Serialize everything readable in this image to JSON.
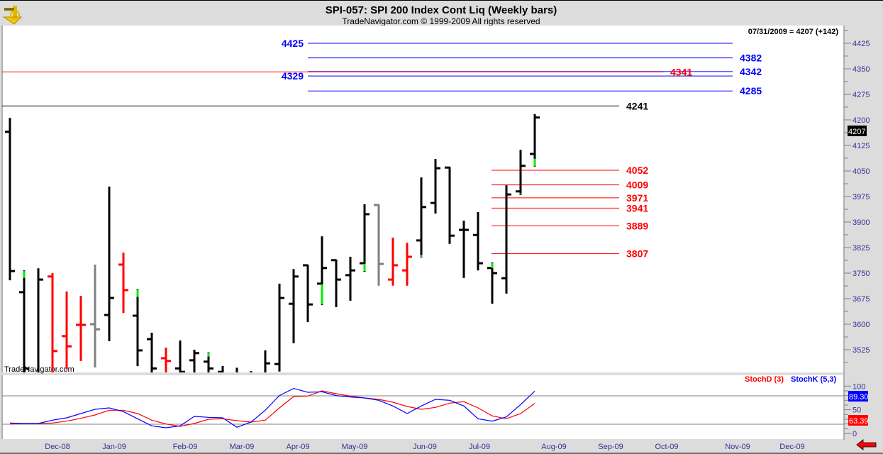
{
  "header": {
    "title": "SPI-057:  SPI 200 Index Cont Liq  (Weekly bars)",
    "subtitle": "TradeNavigator.com © 1999-2009 All rights reserved",
    "logo_icon": "sextant-icon"
  },
  "last_quote": "07/31/2009 = 4207 (+142)",
  "watermark": "TradeNavigator.com",
  "colors": {
    "up": "#000000",
    "down": "#ff0000",
    "neutral": "#808080",
    "new_extreme": "#00ee00",
    "blue": "#0000ff",
    "red": "#ff0000"
  },
  "chart_data": [
    {
      "type": "ohlc",
      "title": "SPI 200 Index Cont Liq (Weekly bars)",
      "ylim": [
        3490,
        4460
      ],
      "y_ticks": [
        "4425",
        "4350",
        "4275",
        "4200",
        "4125",
        "4050",
        "3975",
        "3900",
        "3825",
        "3750",
        "3675",
        "3600",
        "3525"
      ],
      "last_price_label": "4207",
      "bars": [
        {
          "o": 4165,
          "h": 4204,
          "l": 3731,
          "c": 3756,
          "col": "up"
        },
        {
          "o": 3694,
          "h": 3756,
          "l": 3440,
          "c": 3470,
          "col": "up",
          "g": [
            3736,
            3756
          ]
        },
        {
          "o": 3440,
          "h": 3762,
          "l": 3430,
          "c": 3731,
          "col": "up"
        },
        {
          "o": 3740,
          "h": 3748,
          "l": 3440,
          "c": 3521,
          "col": "down"
        },
        {
          "o": 3565,
          "h": 3694,
          "l": 3470,
          "c": 3535,
          "col": "down"
        },
        {
          "o": 3598,
          "h": 3681,
          "l": 3494,
          "c": 3598,
          "col": "down"
        },
        {
          "o": 3600,
          "h": 3773,
          "l": 3475,
          "c": 3585,
          "col": "neutral"
        },
        {
          "o": 3627,
          "h": 4002,
          "l": 3552,
          "c": 3677,
          "col": "up"
        },
        {
          "o": 3775,
          "h": 3808,
          "l": 3635,
          "c": 3700,
          "col": "down"
        },
        {
          "o": 3625,
          "h": 3700,
          "l": 3479,
          "c": 3523,
          "col": "up",
          "g": [
            3680,
            3700
          ]
        },
        {
          "o": 3556,
          "h": 3573,
          "l": 3440,
          "c": 3470,
          "col": "up"
        },
        {
          "o": 3500,
          "h": 3529,
          "l": 3440,
          "c": 3492,
          "col": "down"
        },
        {
          "o": 3470,
          "h": 3550,
          "l": 3440,
          "c": 3460,
          "col": "up"
        },
        {
          "o": 3494,
          "h": 3523,
          "l": 3440,
          "c": 3515,
          "col": "up"
        },
        {
          "o": 3490,
          "h": 3515,
          "l": 3440,
          "c": 3470,
          "col": "up",
          "g": [
            3505,
            3515
          ]
        },
        {
          "o": 3460,
          "h": 3475,
          "l": 3400,
          "c": 3420,
          "col": "up"
        },
        {
          "o": 3430,
          "h": 3470,
          "l": 3380,
          "c": 3400,
          "col": "up"
        },
        {
          "o": 3400,
          "h": 3460,
          "l": 3370,
          "c": 3440,
          "col": "up"
        },
        {
          "o": 3450,
          "h": 3521,
          "l": 3440,
          "c": 3485,
          "col": "up"
        },
        {
          "o": 3483,
          "h": 3717,
          "l": 3463,
          "c": 3677,
          "col": "up"
        },
        {
          "o": 3660,
          "h": 3760,
          "l": 3546,
          "c": 3740,
          "col": "up"
        },
        {
          "o": 3773,
          "h": 3773,
          "l": 3608,
          "c": 3658,
          "col": "up"
        },
        {
          "o": 3719,
          "h": 3856,
          "l": 3658,
          "c": 3765,
          "col": "up",
          "g": [
            3658,
            3717
          ]
        },
        {
          "o": 3788,
          "h": 3788,
          "l": 3652,
          "c": 3731,
          "col": "up"
        },
        {
          "o": 3744,
          "h": 3796,
          "l": 3671,
          "c": 3758,
          "col": "up"
        },
        {
          "o": 3779,
          "h": 3950,
          "l": 3756,
          "c": 3923,
          "col": "up",
          "g": [
            3756,
            3777
          ]
        },
        {
          "o": 3950,
          "h": 3950,
          "l": 3715,
          "c": 3777,
          "col": "neutral"
        },
        {
          "o": 3731,
          "h": 3852,
          "l": 3715,
          "c": 3773,
          "col": "down"
        },
        {
          "o": 3758,
          "h": 3837,
          "l": 3715,
          "c": 3798,
          "col": "down"
        },
        {
          "o": 3846,
          "h": 4029,
          "l": 3798,
          "c": 3944,
          "col": "up",
          "g": [
            3798,
            3803
          ]
        },
        {
          "o": 3956,
          "h": 4083,
          "l": 3927,
          "c": 4058,
          "col": "up"
        },
        {
          "o": 4060,
          "h": 4060,
          "l": 3838,
          "c": 3860,
          "col": "up"
        },
        {
          "o": 3877,
          "h": 3902,
          "l": 3738,
          "c": 3877,
          "col": "up"
        },
        {
          "o": 3862,
          "h": 3927,
          "l": 3760,
          "c": 3779,
          "col": "up"
        },
        {
          "o": 3765,
          "h": 3779,
          "l": 3662,
          "c": 3750,
          "col": "up",
          "g": [
            3765,
            3779
          ]
        },
        {
          "o": 3735,
          "h": 4006,
          "l": 3692,
          "c": 3981,
          "col": "up"
        },
        {
          "o": 3990,
          "h": 4110,
          "l": 3981,
          "c": 4065,
          "col": "up",
          "g": [
            3981,
            3984
          ]
        },
        {
          "o": 4100,
          "h": 4215,
          "l": 4065,
          "c": 4207,
          "col": "up",
          "g": [
            4065,
            4086
          ]
        }
      ],
      "levels": [
        {
          "value": 4425,
          "label": "4425",
          "color": "blue",
          "span": "mid",
          "label_side": "left"
        },
        {
          "value": 4382,
          "label": "4382",
          "color": "blue",
          "span": "mid",
          "label_side": "right"
        },
        {
          "value": 4342,
          "label": "4342",
          "color": "blue",
          "span": "mid",
          "label_side": "right"
        },
        {
          "value": 4329,
          "label": "4329",
          "color": "blue",
          "span": "mid",
          "label_side": "left"
        },
        {
          "value": 4285,
          "label": "4285",
          "color": "blue",
          "span": "mid",
          "label_side": "right"
        },
        {
          "value": 4341,
          "label": "4341",
          "color": "red",
          "span": "full",
          "label_side": "end"
        },
        {
          "value": 4241,
          "label": "4241",
          "color": "black",
          "span": "full",
          "label_side": "end"
        },
        {
          "value": 4052,
          "label": "4052",
          "color": "red",
          "span": "short",
          "label_side": "end"
        },
        {
          "value": 4009,
          "label": "4009",
          "color": "red",
          "span": "short",
          "label_side": "end"
        },
        {
          "value": 3971,
          "label": "3971",
          "color": "red",
          "span": "short",
          "label_side": "end"
        },
        {
          "value": 3941,
          "label": "3941",
          "color": "red",
          "span": "short",
          "label_side": "end"
        },
        {
          "value": 3889,
          "label": "3889",
          "color": "red",
          "span": "short",
          "label_side": "end"
        },
        {
          "value": 3807,
          "label": "3807",
          "color": "red",
          "span": "short",
          "label_side": "end"
        }
      ]
    },
    {
      "type": "line",
      "title": "Stochastics",
      "ylim": [
        0,
        100
      ],
      "y_ticks": [
        "100",
        "50",
        "0"
      ],
      "ref_lines": [
        80,
        20
      ],
      "series": [
        {
          "name": "StochD (3)",
          "color": "red",
          "last": "63.39",
          "values": [
            20,
            21,
            21,
            22,
            26,
            32,
            39,
            49,
            49,
            42,
            28,
            20,
            15,
            21,
            30,
            31,
            27,
            24,
            28,
            54,
            78,
            79,
            90,
            84,
            79,
            75,
            72,
            66,
            57,
            51,
            55,
            64,
            67,
            54,
            37,
            31,
            42,
            63.39
          ]
        },
        {
          "name": "StochK (5,3)",
          "color": "blue",
          "last": "89.30",
          "values": [
            22,
            21,
            21,
            28,
            33,
            42,
            51,
            54,
            46,
            31,
            16,
            12,
            16,
            36,
            34,
            33,
            13,
            24,
            49,
            80,
            95,
            87,
            88,
            80,
            77,
            75,
            70,
            58,
            42,
            58,
            72,
            70,
            58,
            31,
            26,
            35,
            61,
            89.3
          ]
        }
      ]
    }
  ],
  "x_axis": {
    "labels": [
      "Dec-08",
      "Jan-09",
      "Feb-09",
      "Mar-09",
      "Apr-09",
      "May-09",
      "Jun-09",
      "Jul-09",
      "Aug-09",
      "Sep-09",
      "Oct-09",
      "Nov-09",
      "Dec-09"
    ]
  },
  "scroll_arrow_icon": "red-left-arrow-icon"
}
